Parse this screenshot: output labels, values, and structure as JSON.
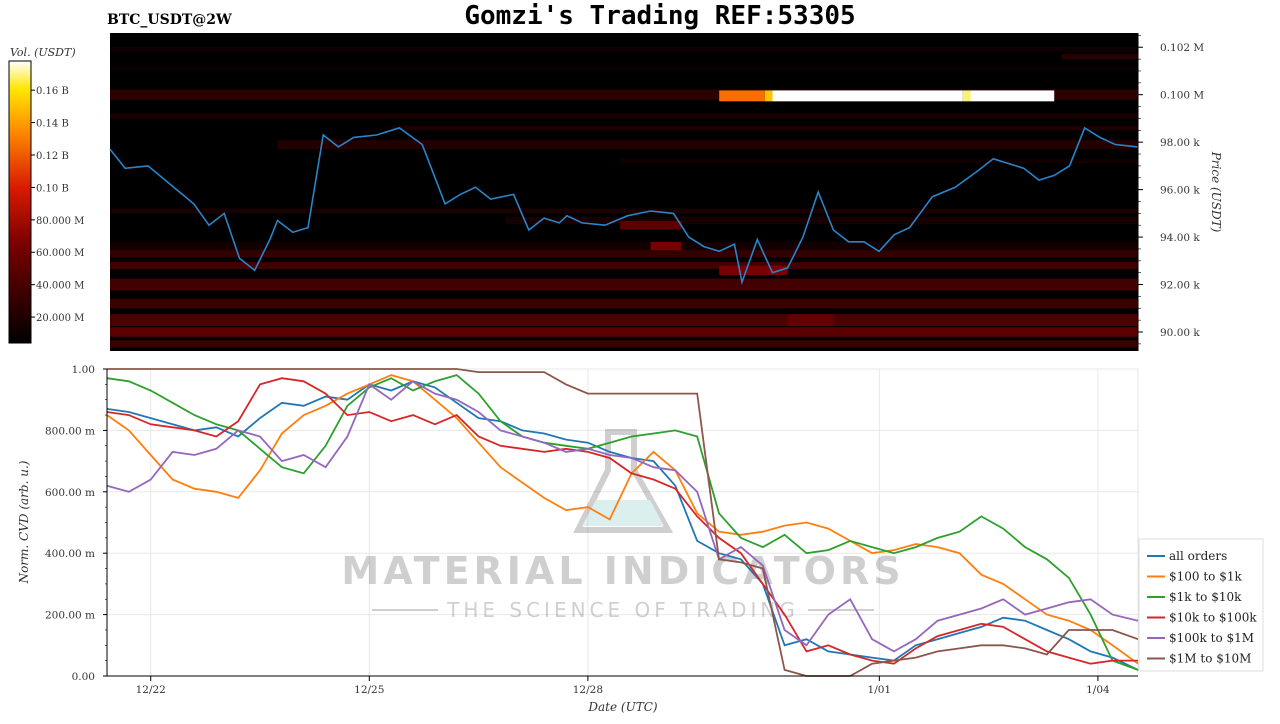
{
  "header": {
    "symbol": "BTC_USDT@2W",
    "title": "Gomzi's Trading REF:53305"
  },
  "colorbar": {
    "label": "Vol. (USDT)",
    "ticks": [
      "0.16 B",
      "0.14 B",
      "0.12 B",
      "0.10 B",
      "80.000 M",
      "60.000 M",
      "40.000 M",
      "20.000 M"
    ],
    "tick_values": [
      160,
      140,
      120,
      100,
      80,
      60,
      40,
      20
    ],
    "range": [
      4,
      178
    ]
  },
  "watermark": {
    "line1": "MATERIAL INDICATORS",
    "line2": "THE SCIENCE OF TRADING"
  },
  "colors": {
    "all_orders": "#1f77b4",
    "s100_1k": "#ff7f0e",
    "s1k_10k": "#2ca02c",
    "s10k_100k": "#d62728",
    "s100k_1m": "#9467bd",
    "s1m_10m": "#8c564b",
    "heatmap_bg": "#000000"
  },
  "chart_data": [
    {
      "type": "heatmap",
      "name": "orderbook-heatmap-with-price",
      "ylabel": "Price (USDT)",
      "y_ticks": [
        "0.102 M",
        "0.100 M",
        "98.00 k",
        "96.00 k",
        "94.00 k",
        "92.00 k",
        "90.00 k"
      ],
      "y_tick_values": [
        102000,
        100000,
        98000,
        96000,
        94000,
        92000,
        90000
      ],
      "ylim": [
        89200,
        102600
      ],
      "xlim": [
        21.8,
        35.3
      ],
      "price_line": {
        "color": "#1f77b4",
        "x": [
          21.8,
          22.0,
          22.3,
          22.6,
          22.9,
          23.1,
          23.3,
          23.5,
          23.7,
          23.9,
          24.0,
          24.2,
          24.4,
          24.6,
          24.8,
          25.0,
          25.3,
          25.6,
          25.9,
          26.2,
          26.4,
          26.6,
          26.8,
          27.1,
          27.3,
          27.5,
          27.7,
          27.8,
          28.0,
          28.3,
          28.6,
          28.9,
          29.2,
          29.4,
          29.6,
          29.8,
          30.0,
          30.1,
          30.3,
          30.5,
          30.7,
          30.9,
          31.1,
          31.3,
          31.5,
          31.7,
          31.9,
          32.1,
          32.3,
          32.6,
          32.9,
          33.2,
          33.4,
          33.6,
          33.8,
          34.0,
          34.2,
          34.4,
          34.6,
          34.8,
          35.0,
          35.3
        ],
        "y": [
          97700,
          96900,
          97000,
          96200,
          95400,
          94500,
          95000,
          93100,
          92600,
          93900,
          94700,
          94200,
          94400,
          98300,
          97800,
          98200,
          98300,
          98600,
          97900,
          95400,
          95800,
          96100,
          95600,
          95800,
          94300,
          94800,
          94600,
          94900,
          94600,
          94500,
          94900,
          95100,
          95000,
          94000,
          93600,
          93400,
          93700,
          92100,
          93900,
          92500,
          92700,
          94000,
          95900,
          94300,
          93800,
          93800,
          93400,
          94100,
          94400,
          95700,
          96100,
          96800,
          97300,
          97100,
          96900,
          96400,
          96600,
          97000,
          98600,
          98200,
          97900,
          97800
        ]
      },
      "bands": [
        {
          "y": 101900,
          "h": 220,
          "x0": 21.8,
          "x1": 35.3,
          "v": 6
        },
        {
          "y": 101600,
          "h": 220,
          "x0": 34.3,
          "x1": 35.3,
          "v": 22
        },
        {
          "y": 101100,
          "h": 200,
          "x0": 21.8,
          "x1": 35.3,
          "v": 5
        },
        {
          "y": 100000,
          "h": 440,
          "x0": 21.8,
          "x1": 35.3,
          "v": 24
        },
        {
          "y": 99950,
          "h": 460,
          "x0": 29.8,
          "x1": 30.4,
          "v": 125
        },
        {
          "y": 99950,
          "h": 460,
          "x0": 30.4,
          "x1": 30.5,
          "v": 150
        },
        {
          "y": 99950,
          "h": 460,
          "x0": 30.5,
          "x1": 33.0,
          "v": 178
        },
        {
          "y": 99950,
          "h": 460,
          "x0": 33.0,
          "x1": 33.1,
          "v": 168
        },
        {
          "y": 99950,
          "h": 460,
          "x0": 33.1,
          "x1": 34.2,
          "v": 178
        },
        {
          "y": 99100,
          "h": 220,
          "x0": 21.8,
          "x1": 35.3,
          "v": 14
        },
        {
          "y": 98600,
          "h": 200,
          "x0": 25.5,
          "x1": 35.3,
          "v": 16
        },
        {
          "y": 97900,
          "h": 400,
          "x0": 24.0,
          "x1": 35.3,
          "v": 18
        },
        {
          "y": 97200,
          "h": 200,
          "x0": 28.5,
          "x1": 35.3,
          "v": 8
        },
        {
          "y": 95100,
          "h": 200,
          "x0": 21.8,
          "x1": 35.3,
          "v": 14
        },
        {
          "y": 94700,
          "h": 300,
          "x0": 27.0,
          "x1": 35.3,
          "v": 12
        },
        {
          "y": 94500,
          "h": 360,
          "x0": 28.5,
          "x1": 29.3,
          "v": 48
        },
        {
          "y": 93600,
          "h": 400,
          "x0": 21.8,
          "x1": 35.3,
          "v": 10
        },
        {
          "y": 93600,
          "h": 400,
          "x0": 28.9,
          "x1": 29.3,
          "v": 62
        },
        {
          "y": 93300,
          "h": 300,
          "x0": 21.8,
          "x1": 35.3,
          "v": 26
        },
        {
          "y": 92800,
          "h": 300,
          "x0": 21.8,
          "x1": 35.3,
          "v": 32
        },
        {
          "y": 92600,
          "h": 400,
          "x0": 29.8,
          "x1": 30.7,
          "v": 62
        },
        {
          "y": 92000,
          "h": 500,
          "x0": 21.8,
          "x1": 35.3,
          "v": 34
        },
        {
          "y": 91200,
          "h": 400,
          "x0": 21.8,
          "x1": 35.3,
          "v": 30
        },
        {
          "y": 90500,
          "h": 500,
          "x0": 21.8,
          "x1": 35.3,
          "v": 40
        },
        {
          "y": 90500,
          "h": 500,
          "x0": 30.7,
          "x1": 31.3,
          "v": 52
        },
        {
          "y": 90000,
          "h": 400,
          "x0": 21.8,
          "x1": 35.3,
          "v": 46
        },
        {
          "y": 89500,
          "h": 300,
          "x0": 21.8,
          "x1": 35.3,
          "v": 30
        }
      ]
    },
    {
      "type": "line",
      "name": "normalized-cvd",
      "xlabel": "Date (UTC)",
      "ylabel": "Norm. CVD (arb. u.)",
      "x_ticks": [
        "12/22",
        "12/25",
        "12/28",
        "1/01",
        "1/04"
      ],
      "x_tick_values": [
        22,
        25,
        28,
        32,
        35
      ],
      "xlim": [
        21.4,
        35.55
      ],
      "y_ticks": [
        "1.00",
        "800.00 m",
        "600.00 m",
        "400.00 m",
        "200.00 m",
        "0.00"
      ],
      "y_tick_values": [
        1.0,
        0.8,
        0.6,
        0.4,
        0.2,
        0.0
      ],
      "ylim": [
        0,
        1
      ],
      "legend_position": "right",
      "x": [
        21.4,
        21.7,
        22.0,
        22.3,
        22.6,
        22.9,
        23.2,
        23.5,
        23.8,
        24.1,
        24.4,
        24.7,
        25.0,
        25.3,
        25.6,
        25.9,
        26.2,
        26.5,
        26.8,
        27.1,
        27.4,
        27.7,
        28.0,
        28.3,
        28.6,
        28.9,
        29.2,
        29.5,
        29.8,
        30.1,
        30.4,
        30.7,
        31.0,
        31.3,
        31.6,
        31.9,
        32.2,
        32.5,
        32.8,
        33.1,
        33.4,
        33.7,
        34.0,
        34.3,
        34.6,
        34.9,
        35.2,
        35.55
      ],
      "series": [
        {
          "name": "all orders",
          "color_key": "all_orders",
          "values": [
            0.87,
            0.86,
            0.84,
            0.82,
            0.8,
            0.81,
            0.78,
            0.84,
            0.89,
            0.88,
            0.91,
            0.9,
            0.95,
            0.93,
            0.96,
            0.94,
            0.89,
            0.84,
            0.83,
            0.8,
            0.79,
            0.77,
            0.76,
            0.73,
            0.71,
            0.7,
            0.62,
            0.44,
            0.4,
            0.38,
            0.3,
            0.1,
            0.12,
            0.08,
            0.07,
            0.06,
            0.05,
            0.1,
            0.12,
            0.14,
            0.16,
            0.19,
            0.18,
            0.15,
            0.12,
            0.08,
            0.06,
            0.02
          ]
        },
        {
          "name": "$100 to $1k",
          "color_key": "s100_1k",
          "values": [
            0.85,
            0.8,
            0.72,
            0.64,
            0.61,
            0.6,
            0.58,
            0.67,
            0.79,
            0.85,
            0.88,
            0.92,
            0.95,
            0.98,
            0.96,
            0.9,
            0.84,
            0.76,
            0.68,
            0.63,
            0.58,
            0.54,
            0.55,
            0.51,
            0.66,
            0.73,
            0.67,
            0.53,
            0.47,
            0.46,
            0.47,
            0.49,
            0.5,
            0.48,
            0.44,
            0.4,
            0.41,
            0.43,
            0.42,
            0.4,
            0.33,
            0.3,
            0.25,
            0.2,
            0.18,
            0.15,
            0.1,
            0.04
          ]
        },
        {
          "name": "$1k to $10k",
          "color_key": "s1k_10k",
          "values": [
            0.97,
            0.96,
            0.93,
            0.89,
            0.85,
            0.82,
            0.8,
            0.74,
            0.68,
            0.66,
            0.75,
            0.88,
            0.94,
            0.97,
            0.93,
            0.96,
            0.98,
            0.92,
            0.83,
            0.78,
            0.76,
            0.75,
            0.74,
            0.76,
            0.78,
            0.79,
            0.8,
            0.78,
            0.53,
            0.45,
            0.42,
            0.46,
            0.4,
            0.41,
            0.44,
            0.42,
            0.4,
            0.42,
            0.45,
            0.47,
            0.52,
            0.48,
            0.42,
            0.38,
            0.32,
            0.2,
            0.05,
            0.02
          ]
        },
        {
          "name": "$10k to $100k",
          "color_key": "s10k_100k",
          "values": [
            0.86,
            0.85,
            0.82,
            0.81,
            0.8,
            0.78,
            0.83,
            0.95,
            0.97,
            0.96,
            0.92,
            0.85,
            0.86,
            0.83,
            0.85,
            0.82,
            0.85,
            0.78,
            0.75,
            0.74,
            0.73,
            0.74,
            0.73,
            0.71,
            0.66,
            0.64,
            0.61,
            0.52,
            0.45,
            0.4,
            0.3,
            0.2,
            0.08,
            0.1,
            0.07,
            0.05,
            0.04,
            0.09,
            0.13,
            0.15,
            0.17,
            0.16,
            0.12,
            0.08,
            0.06,
            0.04,
            0.05,
            0.05
          ]
        },
        {
          "name": "$100k to $1M",
          "color_key": "s100k_1m",
          "values": [
            0.62,
            0.6,
            0.64,
            0.73,
            0.72,
            0.74,
            0.8,
            0.78,
            0.7,
            0.72,
            0.68,
            0.78,
            0.95,
            0.9,
            0.96,
            0.92,
            0.9,
            0.86,
            0.8,
            0.78,
            0.76,
            0.73,
            0.74,
            0.72,
            0.71,
            0.68,
            0.67,
            0.6,
            0.38,
            0.42,
            0.36,
            0.15,
            0.1,
            0.2,
            0.25,
            0.12,
            0.08,
            0.12,
            0.18,
            0.2,
            0.22,
            0.25,
            0.2,
            0.22,
            0.24,
            0.25,
            0.2,
            0.18
          ]
        },
        {
          "name": "$1M to $10M",
          "color_key": "s1m_10m",
          "values": [
            1.0,
            1.0,
            1.0,
            1.0,
            1.0,
            1.0,
            1.0,
            1.0,
            1.0,
            1.0,
            1.0,
            1.0,
            1.0,
            1.0,
            1.0,
            1.0,
            1.0,
            0.99,
            0.99,
            0.99,
            0.99,
            0.95,
            0.92,
            0.92,
            0.92,
            0.92,
            0.92,
            0.92,
            0.38,
            0.37,
            0.35,
            0.02,
            0.0,
            0.0,
            0.0,
            0.04,
            0.05,
            0.06,
            0.08,
            0.09,
            0.1,
            0.1,
            0.09,
            0.07,
            0.15,
            0.15,
            0.15,
            0.12
          ]
        }
      ]
    }
  ]
}
